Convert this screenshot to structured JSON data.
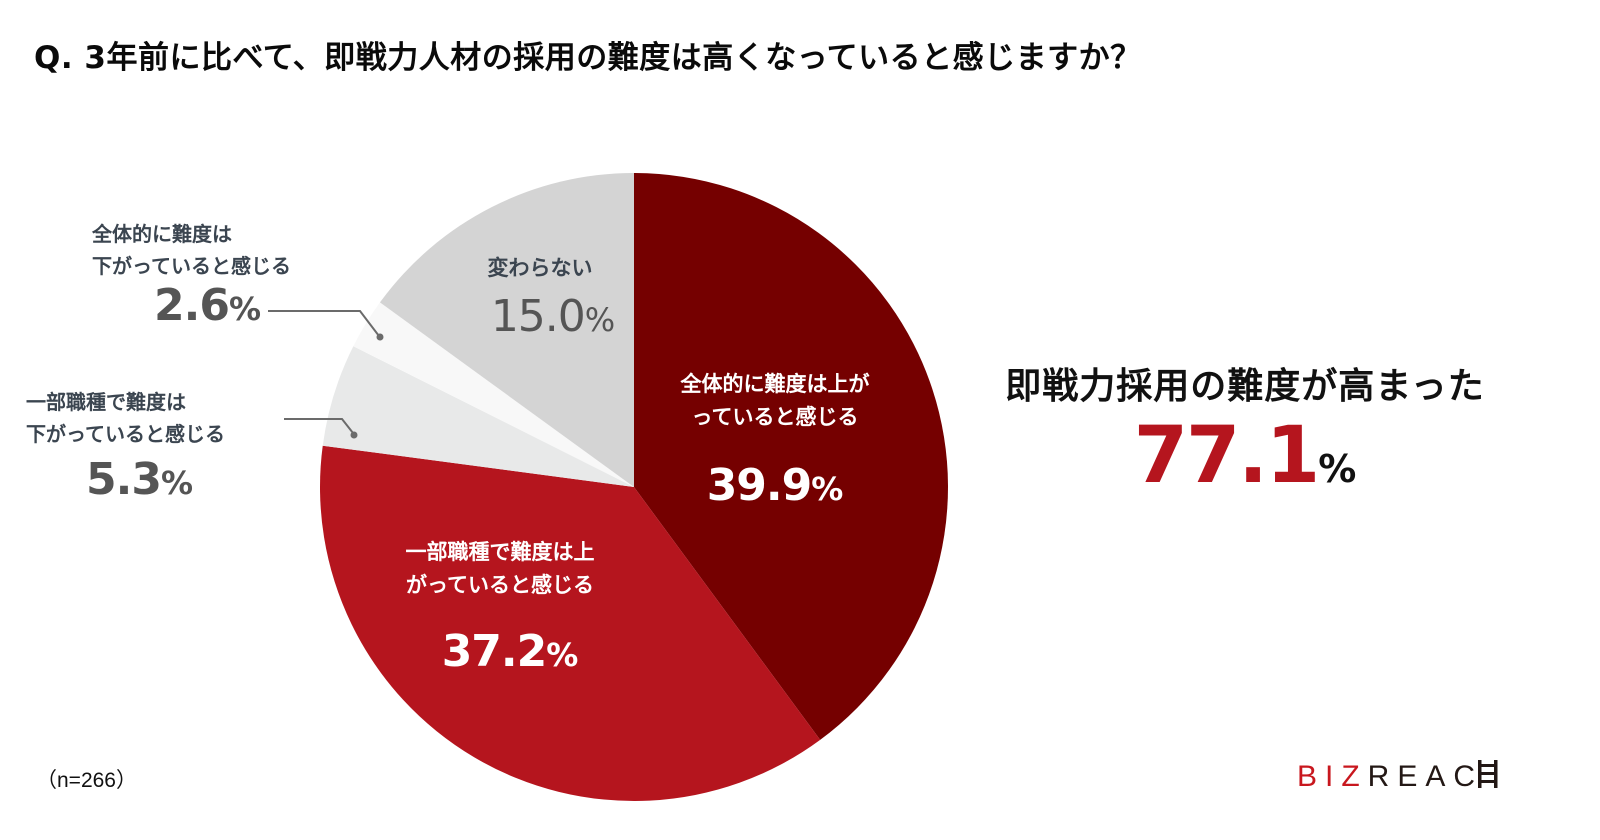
{
  "title": "Q. 3年前に比べて、即戦力人材の採用の難度は高くなっていると感じますか？",
  "slices": [
    {
      "line1": "全体的に難度は上が",
      "line2": "っていると感じる",
      "value": "39.9",
      "sign": "%"
    },
    {
      "line1": "一部職種で難度は上",
      "line2": "がっていると感じる",
      "value": "37.2",
      "sign": "%"
    },
    {
      "line1": "一部職種で難度は",
      "line2": "下がっていると感じる",
      "value": "5.3",
      "sign": "%"
    },
    {
      "line1": "全体的に難度は",
      "line2": "下がっていると感じる",
      "value": "2.6",
      "sign": "%"
    },
    {
      "line1": "変わらない",
      "value": "15.0",
      "sign": "%"
    }
  ],
  "summary": {
    "heading": "即戦力採用の難度が高まった",
    "value": "77.1",
    "sign": "%"
  },
  "sample": "（n=266）",
  "logo": {
    "part1": "BIZ",
    "part2": "REAC",
    "icon": "ladder-h-logo-mark"
  },
  "colors": {
    "slice1": "#750000",
    "slice2": "#b5151e",
    "slice3": "#e8e9e9",
    "slice4": "#f8f8f8",
    "slice5": "#d4d4d4",
    "accent": "#b5151e",
    "leader": "#6b6b6b"
  },
  "chart_data": {
    "type": "pie",
    "title": "Q. 3年前に比べて、即戦力人材の採用の難度は高くなっていると感じますか？",
    "categories": [
      "全体的に難度は上がっていると感じる",
      "一部職種で難度は上がっていると感じる",
      "一部職種で難度は下がっていると感じる",
      "全体的に難度は下がっていると感じる",
      "変わらない"
    ],
    "values": [
      39.9,
      37.2,
      5.3,
      2.6,
      15.0
    ],
    "unit": "%",
    "start_angle": "12 o'clock, clockwise",
    "annotations": [
      "即戦力採用の難度が高まった 77.1%",
      "（n=266）"
    ],
    "n": 266
  }
}
